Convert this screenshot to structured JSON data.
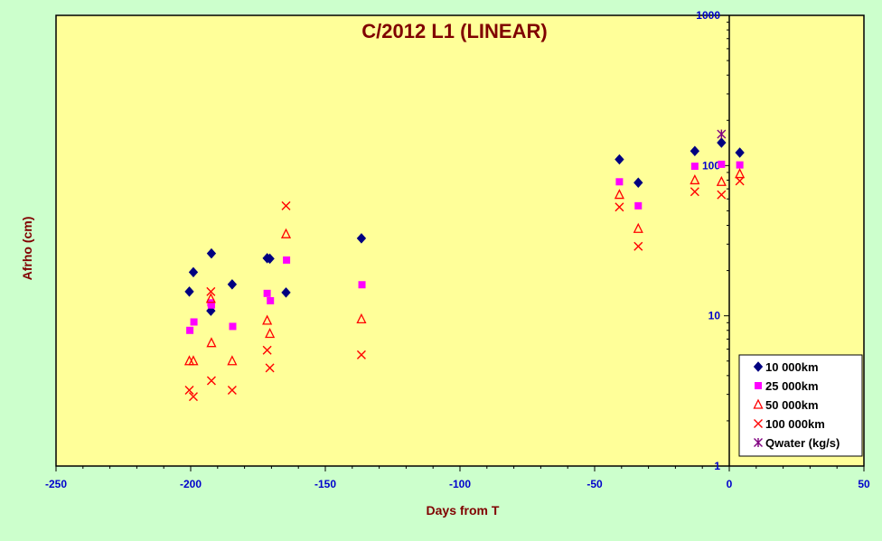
{
  "chart_data": {
    "type": "scatter",
    "title": "C/2012 L1 (LINEAR)",
    "xlabel": "Days from T",
    "ylabel": "Afrho (cm)",
    "xlim": [
      -250,
      50
    ],
    "ylim": [
      1,
      1000
    ],
    "yscale": "log",
    "x_ticks": [
      -250,
      -200,
      -150,
      -100,
      -50,
      0,
      50
    ],
    "y_ticks": [
      1,
      10,
      100,
      1000
    ],
    "legend_position": "bottom-right",
    "grid": false,
    "series": [
      {
        "name": "10 000km",
        "color": "#000080",
        "marker": "diamond",
        "points": [
          [
            -200.5,
            14.5
          ],
          [
            -199,
            19.5
          ],
          [
            -192.5,
            10.8
          ],
          [
            -192.3,
            26
          ],
          [
            -184.6,
            16.2
          ],
          [
            -171.6,
            24.2
          ],
          [
            -170.6,
            24
          ],
          [
            -164.6,
            14.3
          ],
          [
            -136.6,
            32.8
          ],
          [
            -40.8,
            110
          ],
          [
            -33.8,
            77
          ],
          [
            -12.8,
            125
          ],
          [
            -2.9,
            142
          ],
          [
            3.9,
            122
          ]
        ]
      },
      {
        "name": "25 000km",
        "color": "#ff00ff",
        "marker": "square",
        "points": [
          [
            -200.3,
            8
          ],
          [
            -198.8,
            9.1
          ],
          [
            -192.5,
            12.2
          ],
          [
            -192.3,
            11.8
          ],
          [
            -184.4,
            8.5
          ],
          [
            -171.6,
            14.1
          ],
          [
            -170.4,
            12.6
          ],
          [
            -164.4,
            23.5
          ],
          [
            -136.4,
            16.1
          ],
          [
            -40.8,
            78
          ],
          [
            -33.8,
            54
          ],
          [
            -12.8,
            99
          ],
          [
            -2.9,
            102
          ],
          [
            3.9,
            101
          ]
        ]
      },
      {
        "name": "50 000km",
        "color": "#ff0000",
        "marker": "triangle-open",
        "points": [
          [
            -200.5,
            5
          ],
          [
            -199,
            5
          ],
          [
            -192.5,
            13
          ],
          [
            -192.3,
            6.6
          ],
          [
            -184.6,
            5
          ],
          [
            -171.6,
            9.3
          ],
          [
            -170.6,
            7.6
          ],
          [
            -164.6,
            35
          ],
          [
            -136.6,
            9.5
          ],
          [
            -40.8,
            64
          ],
          [
            -33.8,
            38
          ],
          [
            -12.8,
            80
          ],
          [
            -2.9,
            78
          ],
          [
            3.9,
            88
          ]
        ]
      },
      {
        "name": "100 000km",
        "color": "#ff0000",
        "marker": "x",
        "points": [
          [
            -200.5,
            3.2
          ],
          [
            -199,
            2.9
          ],
          [
            -192.5,
            14.5
          ],
          [
            -192.3,
            3.7
          ],
          [
            -184.6,
            3.2
          ],
          [
            -171.6,
            5.9
          ],
          [
            -170.6,
            4.5
          ],
          [
            -164.6,
            54
          ],
          [
            -136.6,
            5.5
          ],
          [
            -40.8,
            53
          ],
          [
            -33.8,
            29
          ],
          [
            -12.8,
            67
          ],
          [
            -2.9,
            64
          ],
          [
            3.9,
            79
          ]
        ]
      },
      {
        "name": "Qwater (kg/s)",
        "color": "#800080",
        "marker": "star",
        "points": [
          [
            -2.9,
            162
          ]
        ]
      }
    ]
  }
}
